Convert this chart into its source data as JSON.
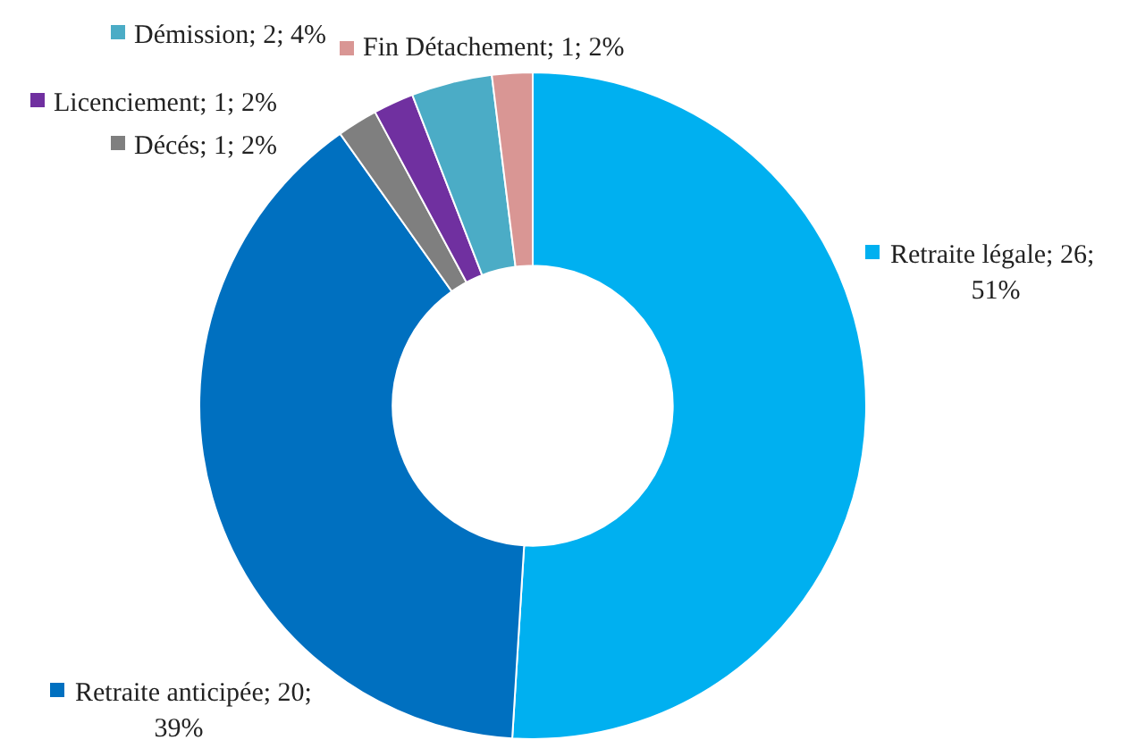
{
  "chart_data": {
    "type": "donut",
    "categories": [
      "Retraite légale",
      "Retraite anticipée",
      "Décés",
      "Licenciement",
      "Démission",
      "Fin Détachement"
    ],
    "values": [
      26,
      20,
      1,
      1,
      2,
      1
    ],
    "value_labels": [
      "26; 51%",
      "20; 39%",
      "1; 2%",
      "1; 2%",
      "2; 4%",
      "1; 2%"
    ],
    "colors": [
      "#00b0f0",
      "#0070c0",
      "#7f7f7f",
      "#7030a0",
      "#4bacc6",
      "#d99694"
    ],
    "legend": "top left"
  }
}
